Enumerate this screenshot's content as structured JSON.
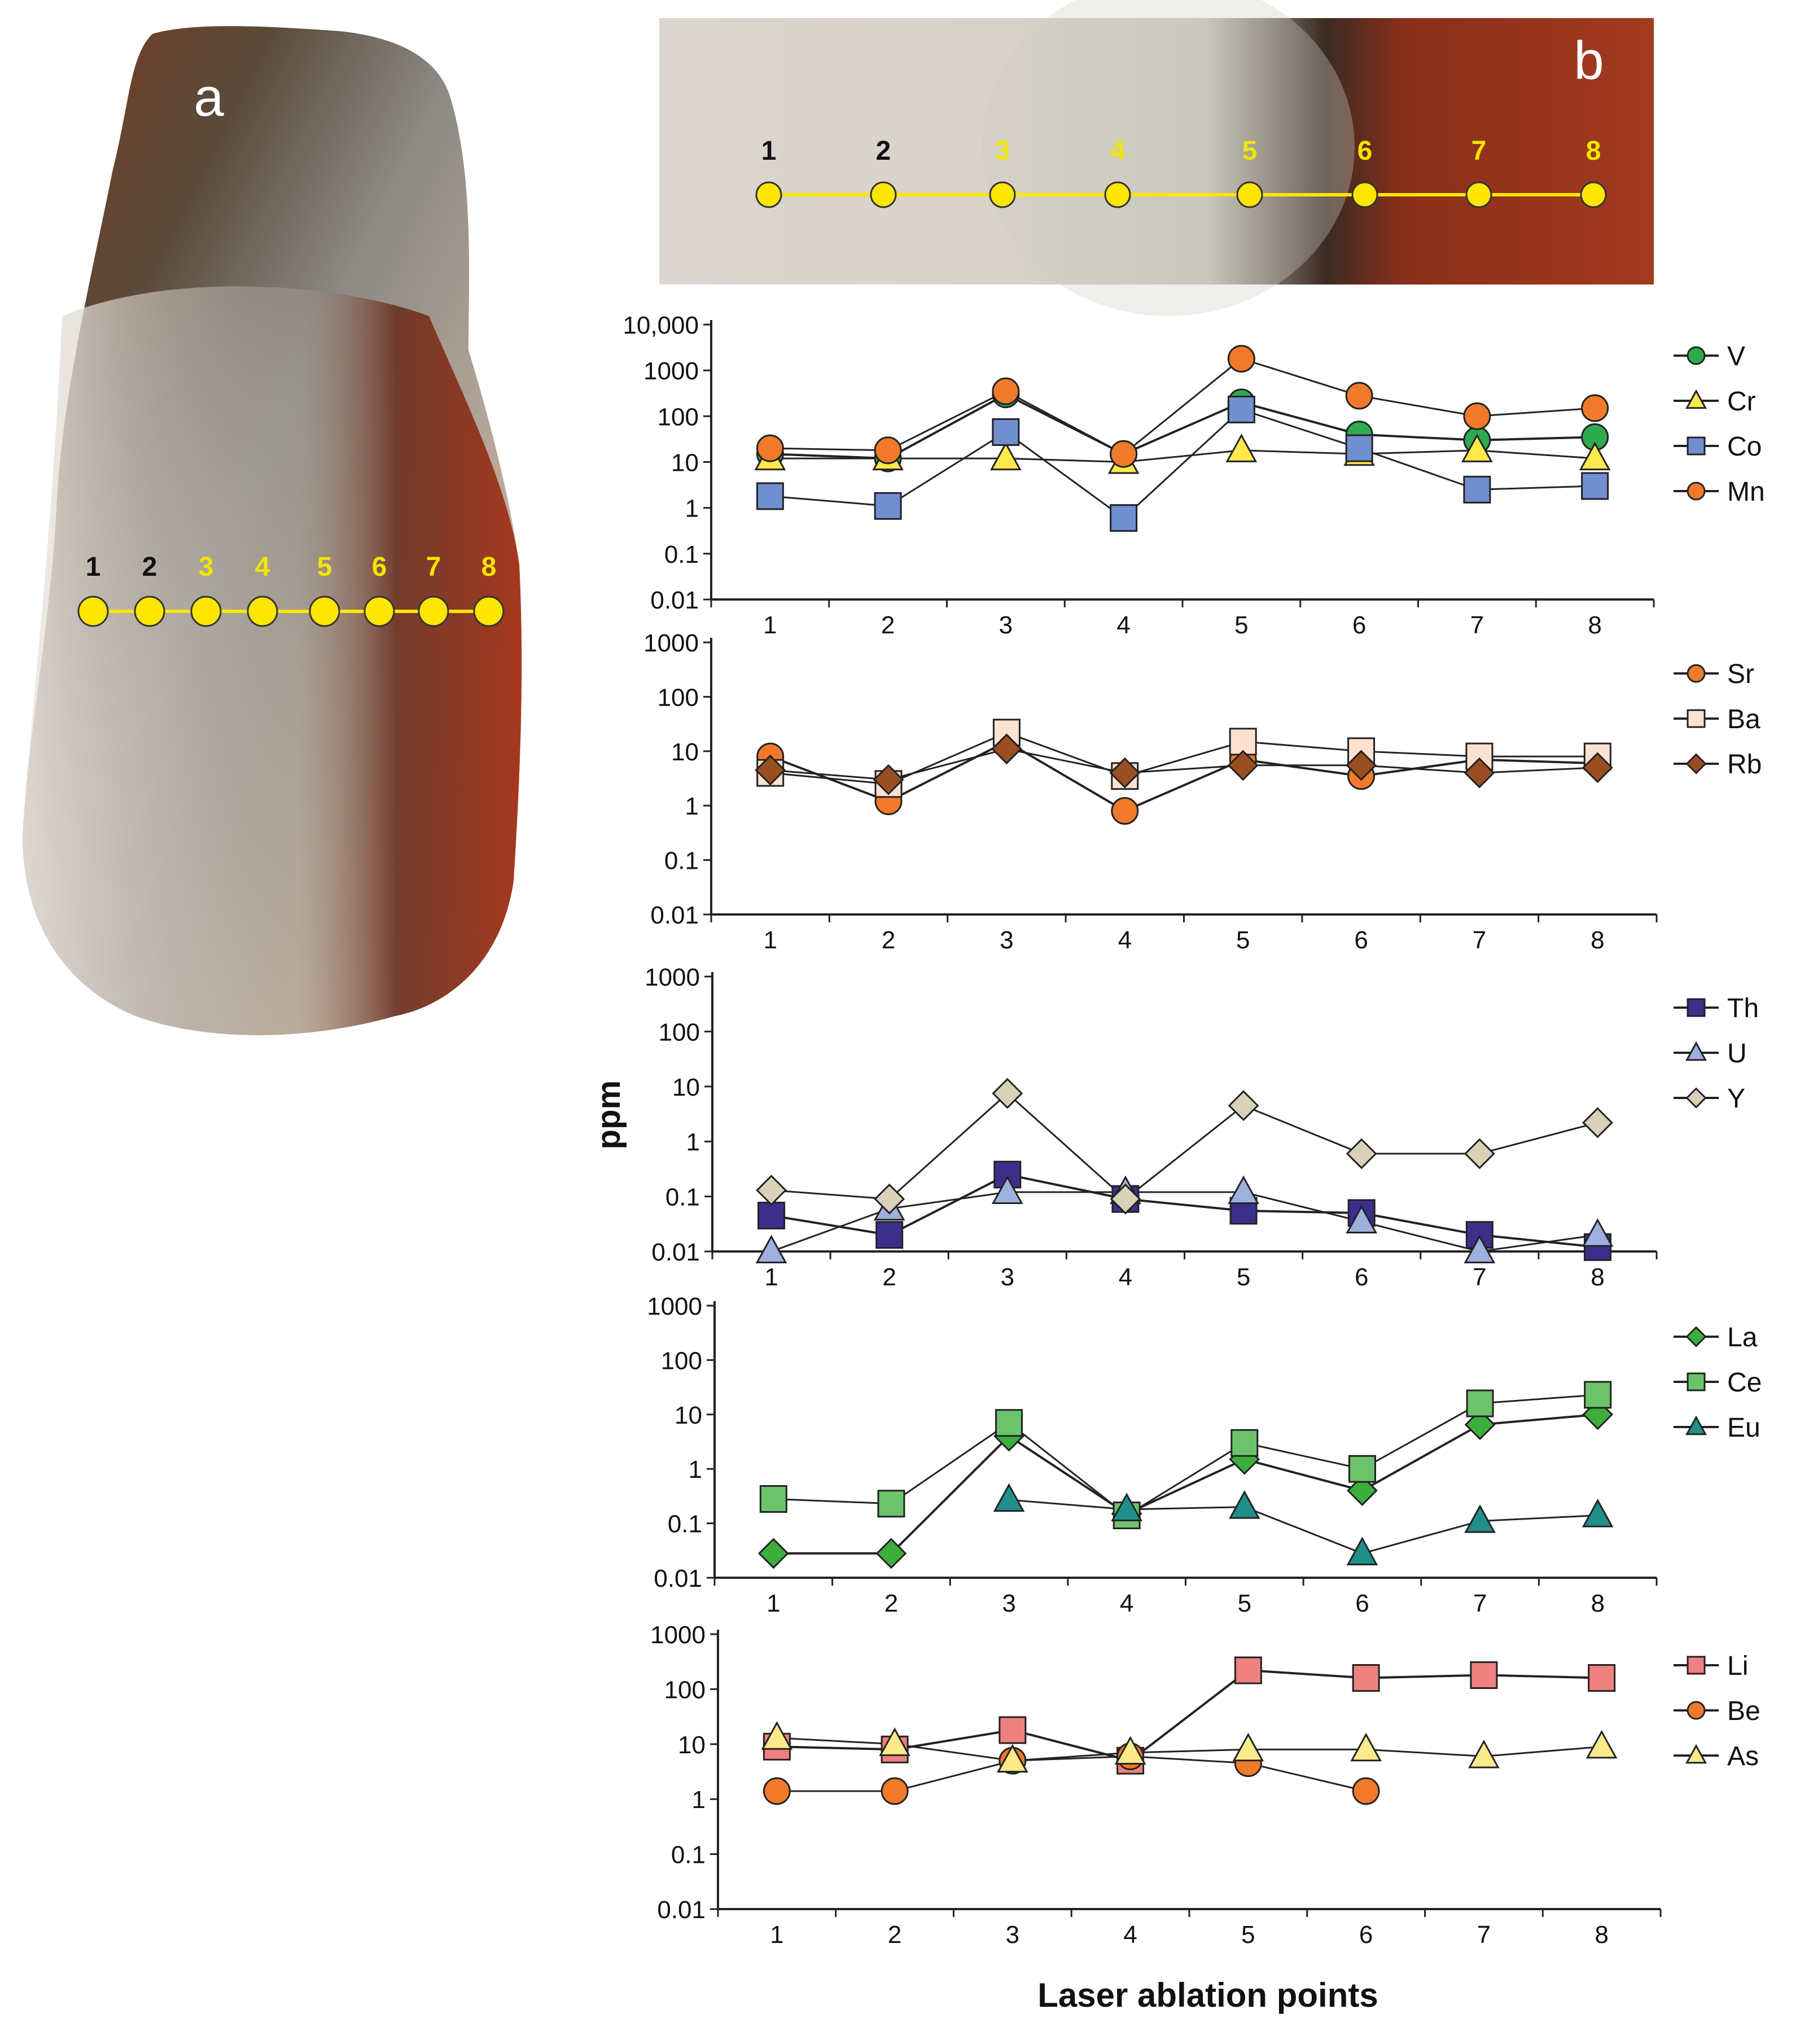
{
  "photo_a": {
    "panel_label": "a",
    "point_labels": [
      "1",
      "2",
      "3",
      "4",
      "5",
      "6",
      "7",
      "8"
    ],
    "point_label_colors": [
      "#111111",
      "#111111",
      "#f2e600",
      "#f2e600",
      "#f2e600",
      "#f2e600",
      "#f2e600",
      "#f2e600"
    ]
  },
  "photo_b": {
    "panel_label": "b",
    "point_labels": [
      "1",
      "2",
      "3",
      "4",
      "5",
      "6",
      "7",
      "8"
    ],
    "point_label_colors": [
      "#111111",
      "#111111",
      "#f2e600",
      "#f2e600",
      "#f2e600",
      "#f2e600",
      "#f2e600",
      "#f2e600"
    ]
  },
  "marker_color": "#ffe600",
  "y_axis_title": "ppm",
  "x_axis_title": "Laser ablation points",
  "chart_data": [
    {
      "type": "line",
      "y_scale": "log",
      "ylim": [
        0.01,
        10000
      ],
      "y_tick_labels": [
        "10,000",
        "1000",
        "100",
        "10",
        "1",
        "0.1",
        "0.01"
      ],
      "x": [
        "1",
        "2",
        "3",
        "4",
        "5",
        "6",
        "7",
        "8"
      ],
      "series": [
        {
          "name": "V",
          "marker": "circle",
          "color": "#2eaa4f",
          "values": [
            15,
            12,
            300,
            15,
            200,
            40,
            30,
            35
          ]
        },
        {
          "name": "Cr",
          "marker": "triangle",
          "color": "#ffe94a",
          "values": [
            12,
            12,
            12,
            10,
            18,
            15,
            18,
            12
          ]
        },
        {
          "name": "Co",
          "marker": "square",
          "color": "#6f8fd0",
          "values": [
            1.8,
            1.1,
            45,
            0.6,
            140,
            20,
            2.5,
            3
          ]
        },
        {
          "name": "Mn",
          "marker": "circle",
          "color": "#f07a2a",
          "values": [
            20,
            18,
            350,
            15,
            1800,
            280,
            100,
            150
          ]
        }
      ]
    },
    {
      "type": "line",
      "y_scale": "log",
      "ylim": [
        0.01,
        1000
      ],
      "y_tick_labels": [
        "1000",
        "100",
        "10",
        "1",
        "0.1",
        "0.01"
      ],
      "x": [
        "1",
        "2",
        "3",
        "4",
        "5",
        "6",
        "7",
        "8"
      ],
      "series": [
        {
          "name": "Sr",
          "marker": "circle",
          "color": "#f07a2a",
          "values": [
            8,
            1.2,
            15,
            0.8,
            7,
            3.5,
            7,
            6
          ]
        },
        {
          "name": "Ba",
          "marker": "square",
          "color": "#fde2d2",
          "values": [
            4,
            2.5,
            22,
            3.5,
            15,
            10,
            8,
            8
          ]
        },
        {
          "name": "Rb",
          "marker": "diamond",
          "color": "#9a4e22",
          "values": [
            4.5,
            3,
            11,
            4,
            5.5,
            5.5,
            4,
            5
          ]
        }
      ]
    },
    {
      "type": "line",
      "y_scale": "log",
      "ylim": [
        0.01,
        1000
      ],
      "y_tick_labels": [
        "1000",
        "100",
        "10",
        "1",
        "0.1",
        "0.01"
      ],
      "x": [
        "1",
        "2",
        "3",
        "4",
        "5",
        "6",
        "7",
        "8"
      ],
      "series": [
        {
          "name": "Th",
          "marker": "square",
          "color": "#3c2f8c",
          "values": [
            0.045,
            0.02,
            0.25,
            0.09,
            0.055,
            0.05,
            0.02,
            0.012
          ]
        },
        {
          "name": "U",
          "marker": "triangle",
          "color": "#9db0de",
          "values": [
            0.01,
            0.06,
            0.12,
            0.12,
            0.12,
            0.035,
            0.01,
            0.02
          ]
        },
        {
          "name": "Y",
          "marker": "diamond",
          "color": "#d9d2b8",
          "values": [
            0.13,
            0.09,
            7.5,
            0.09,
            4.5,
            0.6,
            0.6,
            2.2
          ]
        }
      ]
    },
    {
      "type": "line",
      "y_scale": "log",
      "ylim": [
        0.01,
        1000
      ],
      "y_tick_labels": [
        "1000",
        "100",
        "10",
        "1",
        "0.1",
        "0.01"
      ],
      "x": [
        "1",
        "2",
        "3",
        "4",
        "5",
        "6",
        "7",
        "8"
      ],
      "series": [
        {
          "name": "La",
          "marker": "diamond",
          "color": "#3cae3c",
          "values": [
            0.028,
            0.028,
            4,
            0.15,
            1.5,
            0.4,
            6.5,
            10
          ]
        },
        {
          "name": "Ce",
          "marker": "square",
          "color": "#6cc36c",
          "values": [
            0.28,
            0.23,
            7,
            0.14,
            3,
            1,
            16,
            23
          ]
        },
        {
          "name": "Eu",
          "marker": "triangle",
          "color": "#1f8f8a",
          "values": [
            null,
            null,
            0.27,
            0.18,
            0.2,
            0.028,
            0.11,
            0.14
          ]
        }
      ]
    },
    {
      "type": "line",
      "y_scale": "log",
      "ylim": [
        0.01,
        1000
      ],
      "y_tick_labels": [
        "1000",
        "100",
        "10",
        "1",
        "0.1",
        "0.01"
      ],
      "x": [
        "1",
        "2",
        "3",
        "4",
        "5",
        "6",
        "7",
        "8"
      ],
      "series": [
        {
          "name": "Li",
          "marker": "square",
          "color": "#f08080",
          "values": [
            9,
            8,
            18,
            5,
            220,
            160,
            180,
            160
          ]
        },
        {
          "name": "Be",
          "marker": "circle",
          "color": "#f07a2a",
          "values": [
            1.4,
            1.4,
            5,
            6,
            4.5,
            1.4,
            null,
            null
          ]
        },
        {
          "name": "As",
          "marker": "triangle",
          "color": "#fbe98a",
          "values": [
            13,
            10,
            5,
            7,
            8,
            8,
            6,
            9
          ]
        }
      ]
    }
  ]
}
